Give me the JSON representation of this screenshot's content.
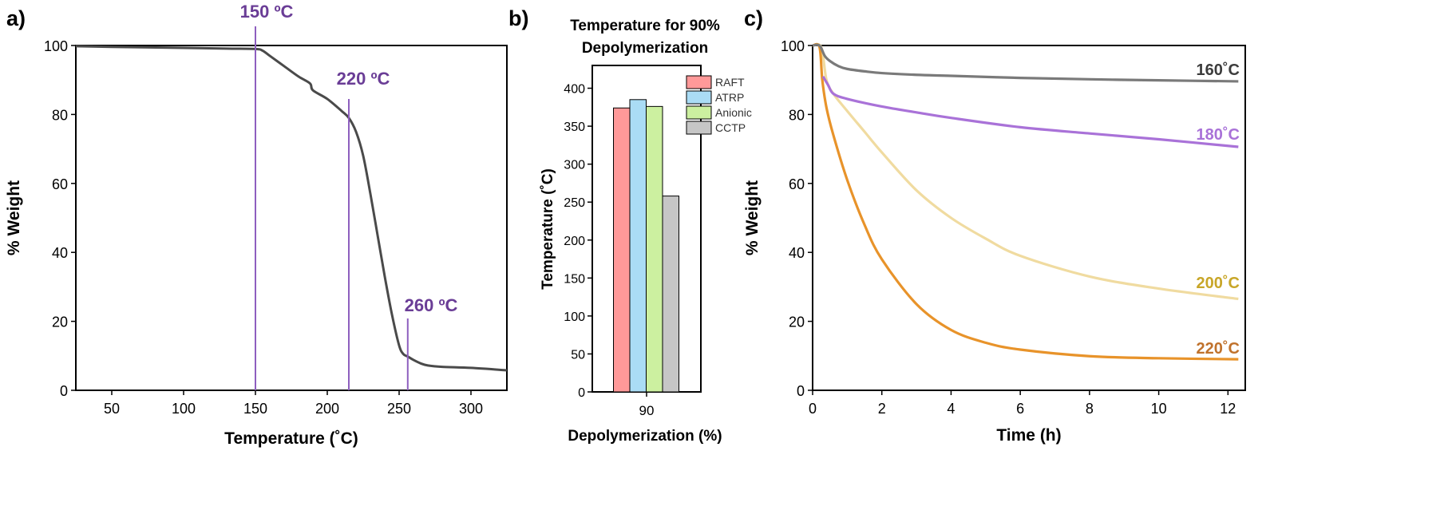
{
  "chart_data": [
    {
      "panel_label": "a)",
      "type": "line",
      "xlabel": "Temperature (˚C)",
      "ylabel": "% Weight",
      "xlim": [
        25,
        325
      ],
      "ylim": [
        0,
        100
      ],
      "xticks": [
        50,
        100,
        150,
        200,
        250,
        300
      ],
      "yticks": [
        0,
        20,
        40,
        60,
        80,
        100
      ],
      "colors": {
        "curve": "#4a4a4a",
        "markers": "#8e5fbf",
        "marker_text": "#6a3d96"
      },
      "series": [
        {
          "x": [
            25,
            50,
            100,
            130,
            150,
            155,
            160,
            170,
            180,
            188,
            190,
            200,
            210,
            215,
            220,
            225,
            230,
            235,
            240,
            245,
            250,
            253,
            256,
            260,
            265,
            270,
            280,
            300,
            325
          ],
          "values": [
            99.8,
            99.6,
            99.3,
            99.1,
            99.0,
            98.5,
            97.0,
            94.0,
            91.0,
            89.0,
            87.0,
            84.5,
            81.0,
            79.0,
            75.0,
            68.0,
            57.0,
            45.0,
            33.0,
            22.0,
            13.0,
            10.5,
            9.8,
            8.8,
            7.8,
            7.2,
            6.8,
            6.5,
            5.8
          ]
        }
      ],
      "annotations": [
        {
          "x": 150,
          "label": "150 ºC"
        },
        {
          "x": 215,
          "label": "220 ºC"
        },
        {
          "x": 256,
          "label": "260 ºC"
        }
      ]
    },
    {
      "panel_label": "b)",
      "type": "bar",
      "title": "Temperature for 90% Depolymerization",
      "title_lines": [
        "Temperature for 90%",
        "Depolymerization"
      ],
      "xlabel": "Depolymerization (%)",
      "ylabel": "Temperature (˚C)",
      "categories": [
        "90"
      ],
      "ylim": [
        0,
        430
      ],
      "yticks": [
        0,
        50,
        100,
        150,
        200,
        250,
        300,
        350,
        400
      ],
      "legend_position": "top-right",
      "series": [
        {
          "name": "RAFT",
          "values": [
            374
          ],
          "color": "#ff9999"
        },
        {
          "name": "ATRP",
          "values": [
            385
          ],
          "color": "#aadcf5"
        },
        {
          "name": "Anionic",
          "values": [
            376
          ],
          "color": "#ccf0a0"
        },
        {
          "name": "CCTP",
          "values": [
            258
          ],
          "color": "#c6c6c6"
        }
      ]
    },
    {
      "panel_label": "c)",
      "type": "line",
      "xlabel": "Time (h)",
      "ylabel": "% Weight",
      "xlim": [
        0,
        12.5
      ],
      "ylim": [
        0,
        100
      ],
      "xticks": [
        0,
        2,
        4,
        6,
        8,
        10,
        12
      ],
      "yticks": [
        0,
        20,
        40,
        60,
        80,
        100
      ],
      "series": [
        {
          "name": "160˚C",
          "color": "#7a7a7a",
          "label_color": "#3c3c3c",
          "x": [
            0.0,
            0.2,
            0.35,
            0.5,
            0.75,
            1,
            1.5,
            2,
            3,
            4,
            6,
            8,
            10,
            12.3
          ],
          "values": [
            100,
            100,
            97.0,
            95.5,
            94.0,
            93.2,
            92.5,
            92.0,
            91.5,
            91.2,
            90.6,
            90.2,
            89.9,
            89.6
          ]
        },
        {
          "name": "180˚C",
          "color": "#a972d8",
          "label_color": "#a972d8",
          "x": [
            0.3,
            0.45,
            0.6,
            1,
            2,
            3,
            4,
            6,
            8,
            10,
            12.3
          ],
          "values": [
            91.0,
            88.5,
            86.0,
            84.5,
            82.3,
            80.6,
            79.0,
            76.3,
            74.5,
            72.8,
            70.6
          ]
        },
        {
          "name": "200˚C",
          "color": "#f0dba0",
          "label_color": "#c8a628",
          "x": [
            0.0,
            0.25,
            0.4,
            0.6,
            1,
            1.5,
            2,
            3,
            4,
            5,
            6,
            8,
            10,
            12.3
          ],
          "values": [
            100,
            99.5,
            90.0,
            86.0,
            81.0,
            75.0,
            69.0,
            58.0,
            50.0,
            44.0,
            39.0,
            33.0,
            29.5,
            26.5
          ]
        },
        {
          "name": "220˚C",
          "color": "#e8932a",
          "label_color": "#c0722c",
          "x": [
            0.0,
            0.2,
            0.28,
            0.4,
            0.6,
            1,
            1.5,
            2,
            3,
            4,
            5,
            6,
            8,
            10,
            12.3
          ],
          "values": [
            100,
            99.5,
            90.0,
            82.0,
            74.0,
            61.0,
            48.0,
            38.0,
            25.0,
            17.5,
            13.8,
            11.8,
            9.9,
            9.3,
            9.0
          ]
        }
      ]
    }
  ]
}
